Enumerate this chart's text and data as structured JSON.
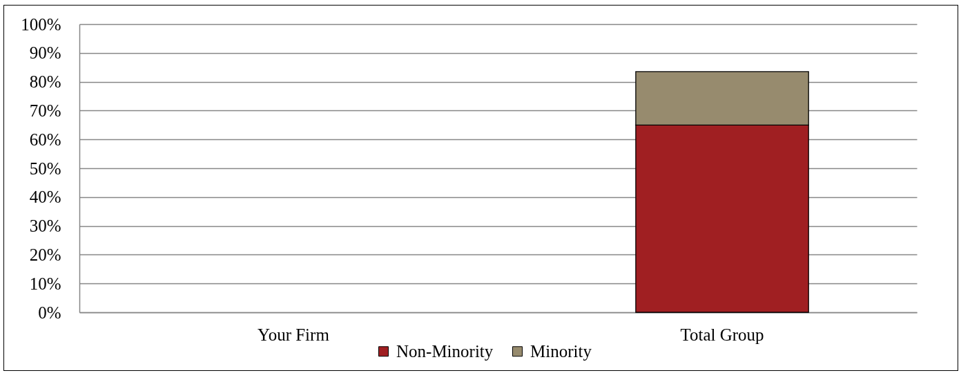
{
  "chart_data": {
    "type": "bar",
    "categories": [
      "Your Firm",
      "Total Group"
    ],
    "series": [
      {
        "name": "Non-Minority",
        "color": "#a01f22",
        "values": [
          null,
          65
        ]
      },
      {
        "name": "Minority",
        "color": "#978b6e",
        "values": [
          null,
          18.5
        ]
      }
    ],
    "stacked": true,
    "ylim": [
      0,
      100
    ],
    "yticks": [
      {
        "value": 0,
        "label": "0%"
      },
      {
        "value": 10,
        "label": "10%"
      },
      {
        "value": 20,
        "label": "20%"
      },
      {
        "value": 30,
        "label": "30%"
      },
      {
        "value": 40,
        "label": "40%"
      },
      {
        "value": 50,
        "label": "50%"
      },
      {
        "value": 60,
        "label": "60%"
      },
      {
        "value": 70,
        "label": "70%"
      },
      {
        "value": 80,
        "label": "80%"
      },
      {
        "value": 90,
        "label": "90%"
      },
      {
        "value": 100,
        "label": "100%"
      }
    ],
    "grid": "y",
    "legend": "bottom"
  }
}
